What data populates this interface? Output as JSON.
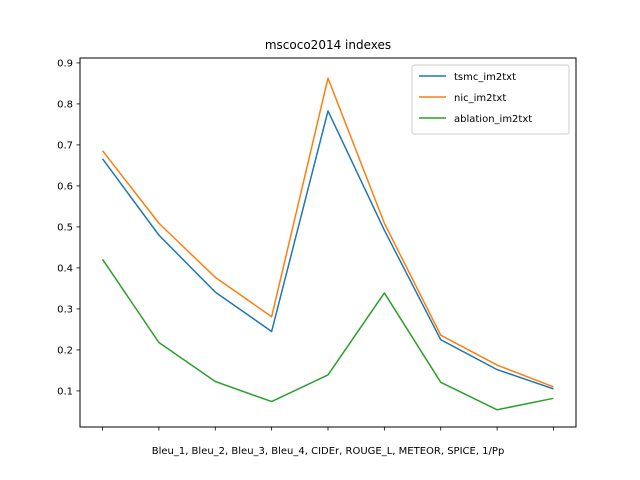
{
  "chart_data": {
    "type": "line",
    "title": "mscoco2014 indexes",
    "xlabel": "Bleu_1, Bleu_2, Bleu_3, Bleu_4, CIDEr, ROUGE_L, METEOR, SPICE, 1/Pp",
    "ylabel": "",
    "x": [
      0,
      1,
      2,
      3,
      4,
      5,
      6,
      7,
      8
    ],
    "yticks": [
      "0.1",
      "0.2",
      "0.3",
      "0.4",
      "0.5",
      "0.6",
      "0.7",
      "0.8",
      "0.9"
    ],
    "ylim": [
      0.012,
      0.912
    ],
    "legend_position": "top-right",
    "grid": false,
    "series": [
      {
        "name": "tsmc_im2txt",
        "color": "#1f77b4",
        "values": [
          0.666,
          0.48,
          0.341,
          0.245,
          0.783,
          0.492,
          0.225,
          0.152,
          0.105
        ]
      },
      {
        "name": "nic_im2txt",
        "color": "#ff7f0e",
        "values": [
          0.686,
          0.509,
          0.377,
          0.281,
          0.863,
          0.509,
          0.236,
          0.163,
          0.11
        ]
      },
      {
        "name": "ablation_im2txt",
        "color": "#2ca02c",
        "values": [
          0.421,
          0.218,
          0.123,
          0.074,
          0.139,
          0.339,
          0.121,
          0.054,
          0.082
        ]
      }
    ]
  }
}
